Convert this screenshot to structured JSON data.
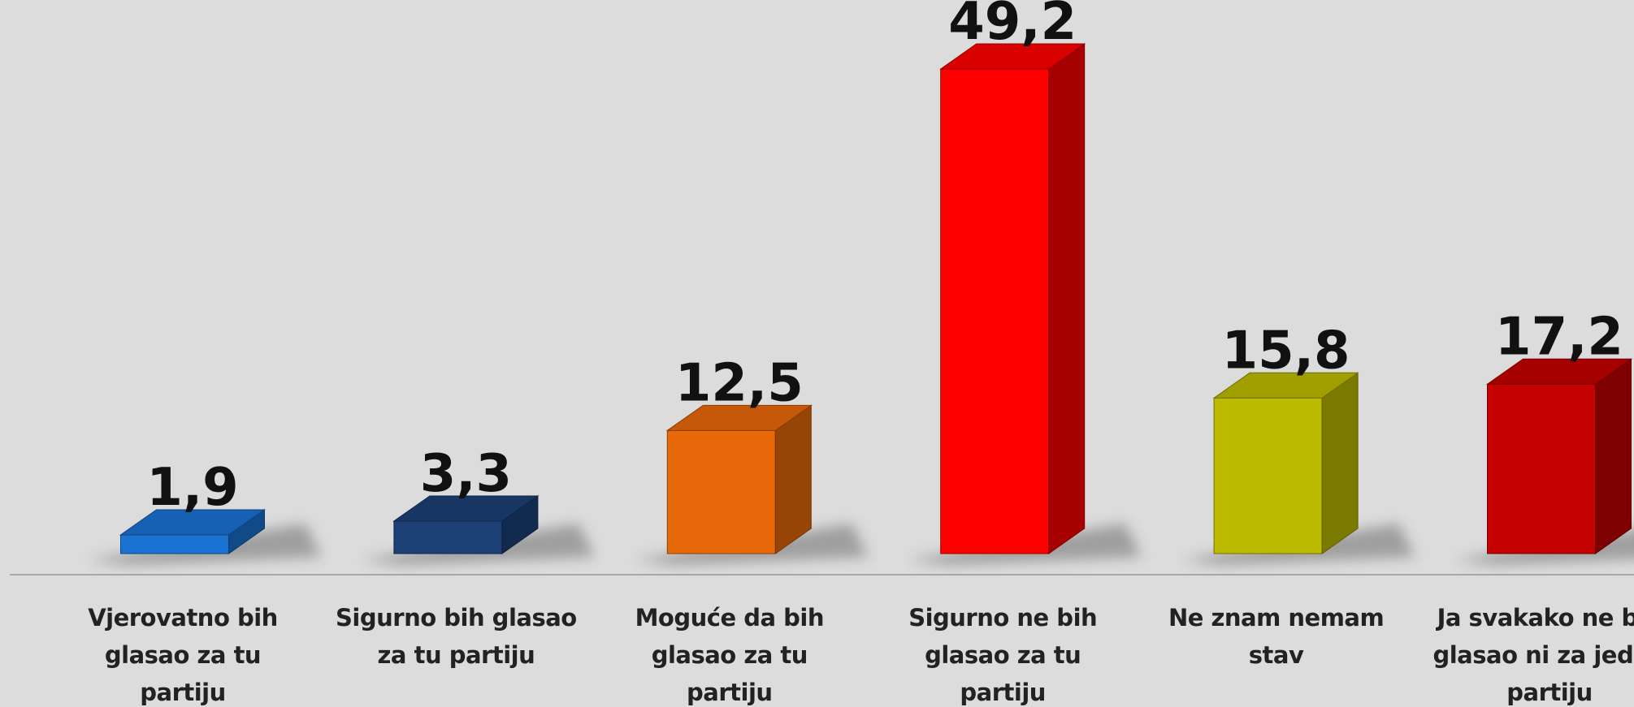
{
  "chart_data": {
    "type": "bar3d",
    "categories": [
      "Vjerovatno bih glasao za tu partiju",
      "Sigurno bih glasao za tu partiju",
      "Moguće da bih glasao za tu partiju",
      "Sigurno ne bih glasao za tu partiju",
      "Ne znam nemam stav",
      "Ja svakako ne bih glasao ni za jednu partiju"
    ],
    "values": [
      1.9,
      3.3,
      12.5,
      49.2,
      15.8,
      17.2
    ],
    "value_labels": [
      "1,9",
      "3,3",
      "12,5",
      "49,2",
      "15,8",
      "17,2"
    ],
    "colors": [
      "#1a72d2",
      "#1c4076",
      "#e8690a",
      "#ff0000",
      "#bdbb00",
      "#c40000"
    ]
  }
}
